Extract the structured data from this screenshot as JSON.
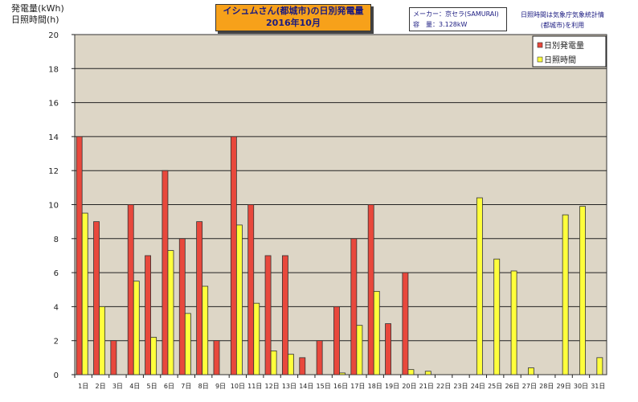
{
  "title": {
    "line1": "イシュムさん(都城市)の日別発電量",
    "line2": "2016年10月"
  },
  "spec": {
    "maker": "メーカー：京セラ(SAMURAI)",
    "capacity": "容　量：3.128kW"
  },
  "note": {
    "line1": "日照時間は気象庁気象統計情",
    "line2": "(都城市)を利用"
  },
  "y_axis_label": {
    "line1": "発電量(kWh)",
    "line2": "日照時間(h)"
  },
  "colors": {
    "plot_bg": "#ddd6c6",
    "generation": "#e8483c",
    "sunshine": "#ffff3c"
  },
  "chart_data": {
    "type": "bar",
    "categories": [
      "1日",
      "2日",
      "3日",
      "4日",
      "5日",
      "6日",
      "7日",
      "8日",
      "9日",
      "10日",
      "11日",
      "12日",
      "13日",
      "14日",
      "15日",
      "16日",
      "17日",
      "18日",
      "19日",
      "20日",
      "21日",
      "22日",
      "23日",
      "24日",
      "25日",
      "26日",
      "27日",
      "28日",
      "29日",
      "30日",
      "31日"
    ],
    "series": [
      {
        "name": "日別発電量",
        "color": "#e8483c",
        "values": [
          14,
          9,
          2,
          10,
          7,
          12,
          8,
          9,
          2,
          14,
          10,
          7,
          7,
          1,
          2,
          4,
          8,
          10,
          3,
          6,
          0,
          0,
          0,
          0,
          0,
          0,
          0,
          0,
          0,
          0,
          0
        ]
      },
      {
        "name": "日照時間",
        "color": "#ffff3c",
        "values": [
          9.5,
          4,
          0,
          5.5,
          2.2,
          7.3,
          3.6,
          5.2,
          0,
          8.8,
          4.2,
          1.4,
          1.2,
          0,
          0,
          0.1,
          2.9,
          4.9,
          0,
          0.3,
          0.2,
          0,
          0,
          10.4,
          6.8,
          6.1,
          0.4,
          0,
          9.4,
          9.9,
          1
        ]
      }
    ],
    "yticks": [
      "0",
      "2",
      "4",
      "6",
      "8",
      "10",
      "12",
      "14",
      "16",
      "18",
      "20"
    ],
    "ylim": [
      0,
      20
    ],
    "grid": true,
    "legend_position": "top-right"
  }
}
